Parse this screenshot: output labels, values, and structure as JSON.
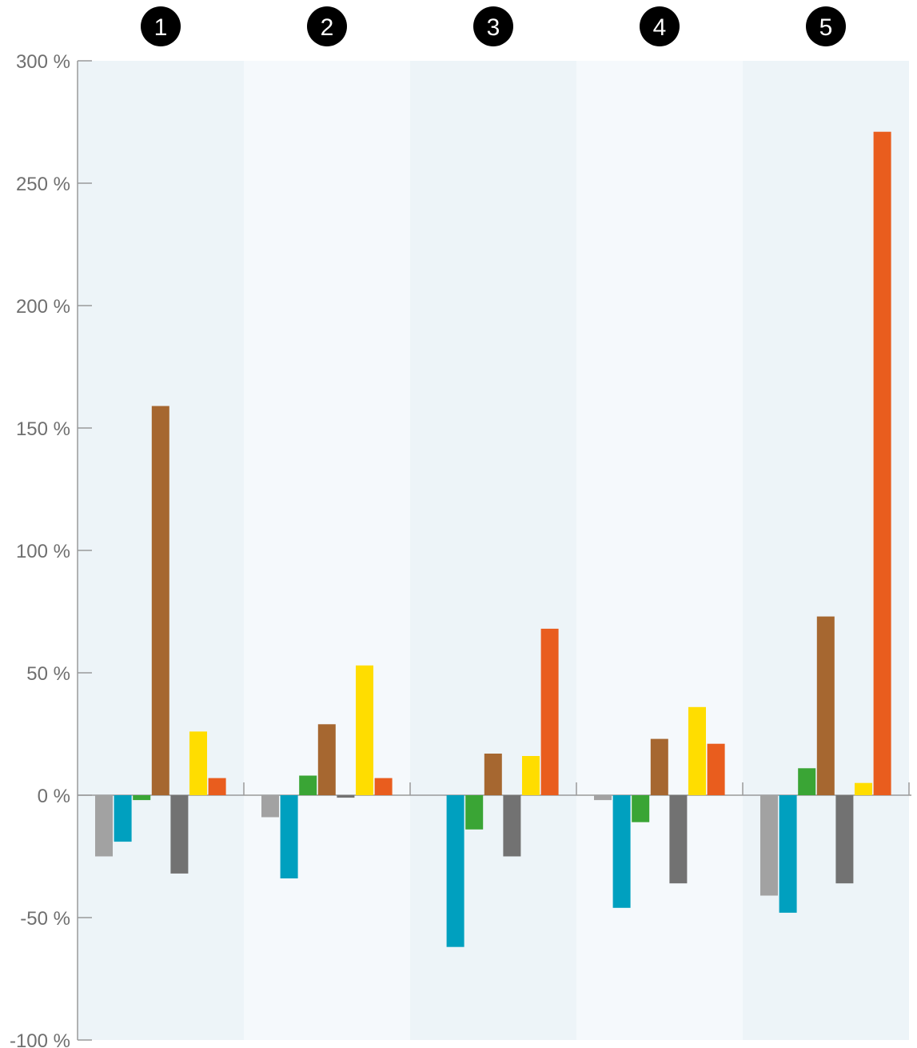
{
  "chart_data": {
    "type": "bar",
    "title": "",
    "xlabel": "",
    "ylabel": "",
    "categories": [
      "1",
      "2",
      "3",
      "4",
      "5"
    ],
    "series": [
      {
        "color": "#a2a2a2",
        "values": [
          -25,
          -9,
          0,
          -2,
          -41
        ]
      },
      {
        "color": "#00a0bf",
        "values": [
          -19,
          -34,
          -62,
          -46,
          -48
        ]
      },
      {
        "color": "#3aa535",
        "values": [
          -2,
          8,
          -14,
          -11,
          11
        ]
      },
      {
        "color": "#a66730",
        "values": [
          159,
          29,
          17,
          23,
          73
        ]
      },
      {
        "color": "#727272",
        "values": [
          -32,
          -1,
          -25,
          -36,
          -36
        ]
      },
      {
        "color": "#ffdd00",
        "values": [
          26,
          53,
          16,
          36,
          5
        ]
      },
      {
        "color": "#e95d1e",
        "values": [
          7,
          7,
          68,
          21,
          271
        ]
      }
    ],
    "ylim": [
      -100,
      300
    ],
    "yticks": [
      300,
      250,
      200,
      150,
      100,
      50,
      0,
      -50,
      -100
    ],
    "ytick_labels": [
      "300 %",
      "250 %",
      "200 %",
      "150 %",
      "100 %",
      "50 %",
      "0 %",
      "-50 %",
      "-100 %"
    ],
    "grid": false,
    "band_colors": [
      "#edf4f8",
      "#f5f9fc"
    ]
  }
}
